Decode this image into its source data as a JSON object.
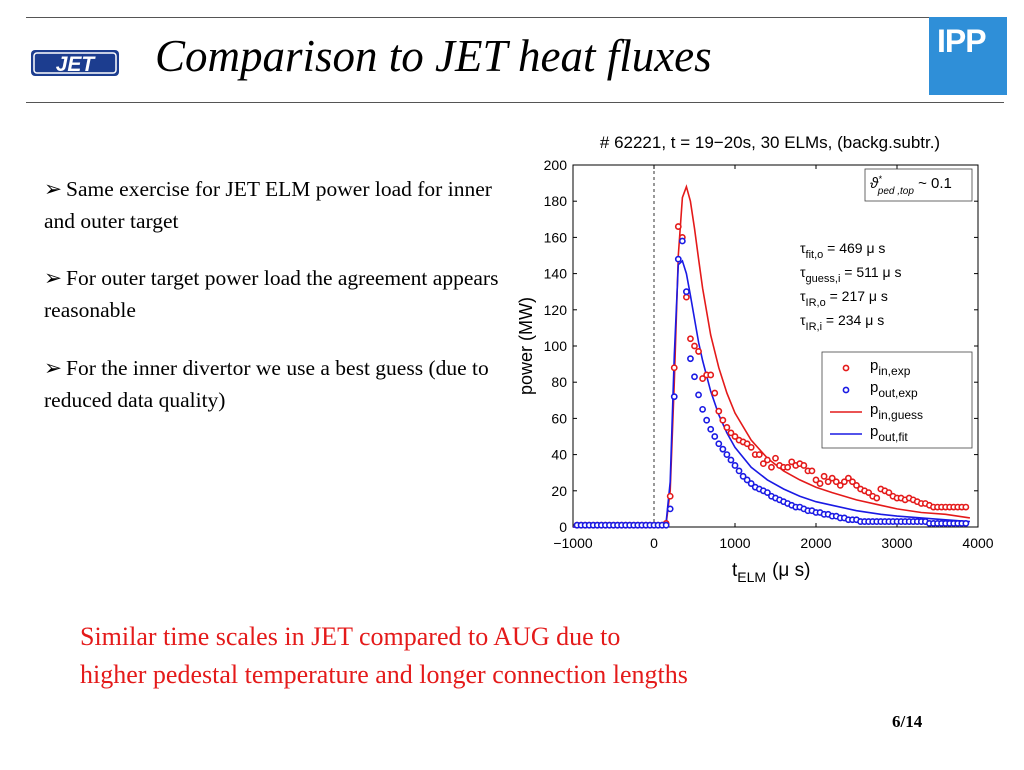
{
  "slide": {
    "title": "Comparison to JET heat fluxes",
    "logo_left": "JET",
    "logo_right": "IPP",
    "page_number": "6/14"
  },
  "bullets": [
    {
      "arrow": "➢",
      "text": "Same exercise for JET ELM power load for inner and outer target"
    },
    {
      "arrow": "➢",
      "text": "For outer target power load the agreement appears reasonable"
    },
    {
      "arrow": "➢",
      "text": "For the inner divertor we use a best guess (due to reduced data quality)"
    }
  ],
  "conclusion": {
    "line1": "Similar time scales in JET compared to AUG due to",
    "line2": "higher pedestal temperature and longer connection lengths"
  },
  "chart_data": {
    "type": "scatter",
    "title": "# 62221, t = 19−20s, 30 ELMs, (backg.subtr.)",
    "xlabel": "t",
    "xlabel_sub": "ELM",
    "xlabel_unit": "(μ s)",
    "ylabel": "power (MW)",
    "xlim": [
      -1000,
      4000
    ],
    "ylim": [
      0,
      200
    ],
    "xticks": [
      "−1000",
      "0",
      "1000",
      "2000",
      "3000",
      "4000"
    ],
    "yticks": [
      "0",
      "20",
      "40",
      "60",
      "80",
      "100",
      "120",
      "140",
      "160",
      "180",
      "200"
    ],
    "vline_x": 0,
    "inset_label": "ϑ*ped,top ~ 0.1",
    "inset": {
      "symbol": "ϑ",
      "sup": "*",
      "sub": "ped ,top",
      "rest": " ~ 0.1"
    },
    "annotations": [
      {
        "sym": "τ",
        "sub": "fit,o",
        "rest": " = 469 μ s"
      },
      {
        "sym": "τ",
        "sub": "guess,i",
        "rest": " = 511 μ s"
      },
      {
        "sym": "τ",
        "sub": "IR,o",
        "rest": "  = 217 μ s"
      },
      {
        "sym": "τ",
        "sub": "IR,i",
        "rest": "  = 234 μ s"
      }
    ],
    "legend": [
      {
        "main": "p",
        "sub": "in,exp",
        "kind": "marker",
        "color": "#e41a1a"
      },
      {
        "main": "p",
        "sub": "out,exp",
        "kind": "marker",
        "color": "#1a1ae4"
      },
      {
        "main": "p",
        "sub": "in,guess",
        "kind": "line",
        "color": "#e41a1a"
      },
      {
        "main": "p",
        "sub": "out,fit",
        "kind": "line",
        "color": "#1a1ae4"
      }
    ],
    "legend_position": "right",
    "colors": {
      "in": "#e41a1a",
      "out": "#1a1ae4"
    },
    "series": [
      {
        "kind": "markers",
        "color": "#e41a1a",
        "x": [
          -950,
          -900,
          -850,
          -800,
          -750,
          -700,
          -650,
          -600,
          -550,
          -500,
          -450,
          -400,
          -350,
          -300,
          -250,
          -200,
          -150,
          -100,
          -50,
          0,
          50,
          100,
          150,
          200,
          250,
          300,
          350,
          400,
          450,
          500,
          550,
          600,
          650,
          700,
          750,
          800,
          850,
          900,
          950,
          1000,
          1050,
          1100,
          1150,
          1200,
          1250,
          1300,
          1350,
          1400,
          1450,
          1500,
          1550,
          1600,
          1650,
          1700,
          1750,
          1800,
          1850,
          1900,
          1950,
          2000,
          2050,
          2100,
          2150,
          2200,
          2250,
          2300,
          2350,
          2400,
          2450,
          2500,
          2550,
          2600,
          2650,
          2700,
          2750,
          2800,
          2850,
          2900,
          2950,
          3000,
          3050,
          3100,
          3150,
          3200,
          3250,
          3300,
          3350,
          3400,
          3450,
          3500,
          3550,
          3600,
          3650,
          3700,
          3750,
          3800,
          3850
        ],
        "y": [
          1,
          1,
          1,
          1,
          1,
          1,
          1,
          1,
          1,
          1,
          1,
          1,
          1,
          1,
          1,
          1,
          1,
          1,
          1,
          1,
          1,
          1,
          2,
          17,
          88,
          166,
          160,
          127,
          104,
          100,
          97,
          82,
          84,
          84,
          74,
          64,
          59,
          55,
          52,
          50,
          48,
          47,
          46,
          44,
          40,
          40,
          35,
          37,
          33,
          38,
          34,
          33,
          33,
          36,
          34,
          35,
          34,
          31,
          31,
          26,
          24,
          28,
          25,
          27,
          25,
          23,
          25,
          27,
          25,
          23,
          21,
          20,
          19,
          17,
          16,
          21,
          20,
          19,
          17,
          16,
          16,
          15,
          16,
          15,
          14,
          13,
          13,
          12,
          11,
          11,
          11,
          11,
          11,
          11,
          11,
          11,
          11
        ],
        "name_hint": "in,exp"
      },
      {
        "kind": "markers",
        "color": "#1a1ae4",
        "x": [
          -950,
          -900,
          -850,
          -800,
          -750,
          -700,
          -650,
          -600,
          -550,
          -500,
          -450,
          -400,
          -350,
          -300,
          -250,
          -200,
          -150,
          -100,
          -50,
          0,
          50,
          100,
          150,
          200,
          250,
          300,
          350,
          400,
          450,
          500,
          550,
          600,
          650,
          700,
          750,
          800,
          850,
          900,
          950,
          1000,
          1050,
          1100,
          1150,
          1200,
          1250,
          1300,
          1350,
          1400,
          1450,
          1500,
          1550,
          1600,
          1650,
          1700,
          1750,
          1800,
          1850,
          1900,
          1950,
          2000,
          2050,
          2100,
          2150,
          2200,
          2250,
          2300,
          2350,
          2400,
          2450,
          2500,
          2550,
          2600,
          2650,
          2700,
          2750,
          2800,
          2850,
          2900,
          2950,
          3000,
          3050,
          3100,
          3150,
          3200,
          3250,
          3300,
          3350,
          3400,
          3450,
          3500,
          3550,
          3600,
          3650,
          3700,
          3750,
          3800,
          3850
        ],
        "y": [
          1,
          1,
          1,
          1,
          1,
          1,
          1,
          1,
          1,
          1,
          1,
          1,
          1,
          1,
          1,
          1,
          1,
          1,
          1,
          1,
          1,
          1,
          1,
          10,
          72,
          148,
          158,
          130,
          93,
          83,
          73,
          65,
          59,
          54,
          50,
          46,
          43,
          40,
          37,
          34,
          31,
          28,
          26,
          24,
          22,
          21,
          20,
          19,
          17,
          16,
          15,
          14,
          13,
          12,
          11,
          11,
          10,
          9,
          9,
          8,
          8,
          7,
          7,
          6,
          6,
          5,
          5,
          4,
          4,
          4,
          3,
          3,
          3,
          3,
          3,
          3,
          3,
          3,
          3,
          3,
          3,
          3,
          3,
          3,
          3,
          3,
          3,
          2,
          2,
          2,
          2,
          2,
          2,
          2,
          2,
          2,
          2
        ],
        "name_hint": "out,exp"
      },
      {
        "kind": "line",
        "color": "#e41a1a",
        "x": [
          -1000,
          -500,
          0,
          100,
          150,
          200,
          250,
          300,
          350,
          400,
          450,
          500,
          550,
          600,
          700,
          800,
          900,
          1000,
          1200,
          1400,
          1600,
          1800,
          2000,
          2200,
          2500,
          2800,
          3000,
          3300,
          3600,
          3900
        ],
        "y": [
          0,
          0,
          0,
          0,
          2,
          20,
          80,
          150,
          182,
          188,
          180,
          165,
          148,
          132,
          106,
          88,
          74,
          63,
          48,
          38,
          31,
          26,
          22,
          19,
          15,
          12,
          10,
          8,
          7,
          5
        ],
        "name_hint": "in,guess"
      },
      {
        "kind": "line",
        "color": "#1a1ae4",
        "x": [
          -1000,
          -500,
          0,
          100,
          150,
          200,
          250,
          300,
          350,
          400,
          450,
          500,
          550,
          600,
          700,
          800,
          900,
          1000,
          1200,
          1400,
          1600,
          1800,
          2000,
          2200,
          2500,
          2800,
          3000,
          3300,
          3600,
          3900
        ],
        "y": [
          0,
          0,
          0,
          0,
          3,
          25,
          95,
          145,
          147,
          140,
          128,
          115,
          102,
          92,
          75,
          62,
          52,
          44,
          33,
          26,
          21,
          17,
          14,
          12,
          9,
          7,
          6,
          5,
          4,
          3
        ],
        "name_hint": "out,fit"
      }
    ]
  }
}
